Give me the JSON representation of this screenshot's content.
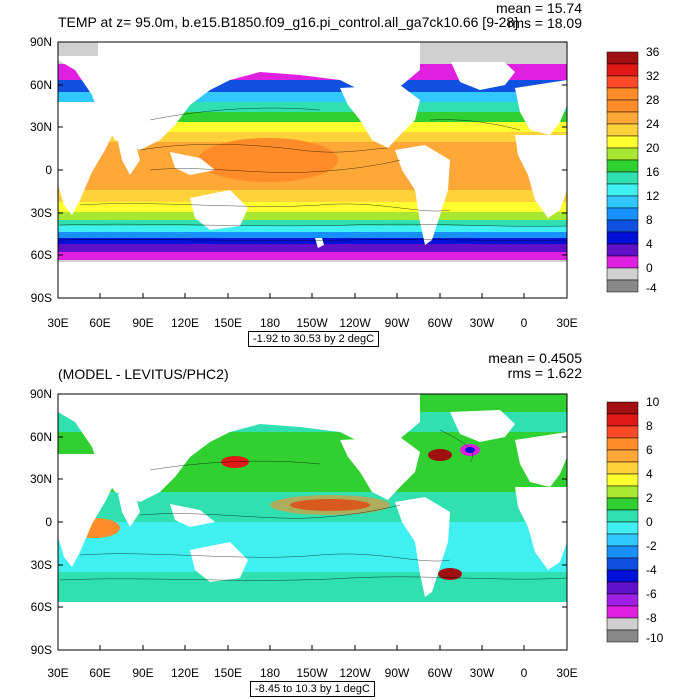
{
  "panels": [
    {
      "title": "TEMP at z=  95.0m, b.e15.B1850.f09_g16.pi_control.all_ga7ck10.66 [9-28]",
      "mean": "mean = 15.74",
      "rms": "rms = 18.09",
      "subtitle": "-1.92 to 30.53 by 2 degC",
      "colorbar_labels": [
        "36",
        "32",
        "28",
        "24",
        "20",
        "16",
        "12",
        "8",
        "4",
        "0",
        "-4"
      ],
      "colorbar_colors": [
        "#a01010",
        "#e01818",
        "#ff4a2a",
        "#ff8c28",
        "#ffa838",
        "#ffd23a",
        "#ffff30",
        "#a8e830",
        "#30d030",
        "#30e0b0",
        "#40f0f0",
        "#30c8ff",
        "#1890ff",
        "#1050e0",
        "#0010d8",
        "#6010c8",
        "#a020e8",
        "#e020e0",
        "#d0d0d0",
        "#888888"
      ]
    },
    {
      "title": "(MODEL - LEVITUS/PHC2)",
      "mean": "mean = 0.4505",
      "rms": "rms = 1.622",
      "subtitle": "-8.45 to 10.3 by 1 degC",
      "colorbar_labels": [
        "10",
        "8",
        "6",
        "4",
        "2",
        "0",
        "-2",
        "-4",
        "-6",
        "-8",
        "-10"
      ],
      "colorbar_colors": [
        "#a01010",
        "#e01818",
        "#ff4a2a",
        "#ff8c28",
        "#ffa838",
        "#ffd23a",
        "#ffff30",
        "#a8e830",
        "#30d030",
        "#30e0b0",
        "#40f0f0",
        "#30c8ff",
        "#1890ff",
        "#1050e0",
        "#0010d8",
        "#6010c8",
        "#a020e8",
        "#e020e0",
        "#d0d0d0",
        "#888888"
      ]
    }
  ],
  "lat_labels": [
    "90N",
    "60N",
    "30N",
    "0",
    "30S",
    "60S",
    "90S"
  ],
  "lon_labels": [
    "30E",
    "60E",
    "90E",
    "120E",
    "150E",
    "180",
    "150W",
    "120W",
    "90W",
    "60W",
    "30W",
    "0",
    "30E"
  ]
}
